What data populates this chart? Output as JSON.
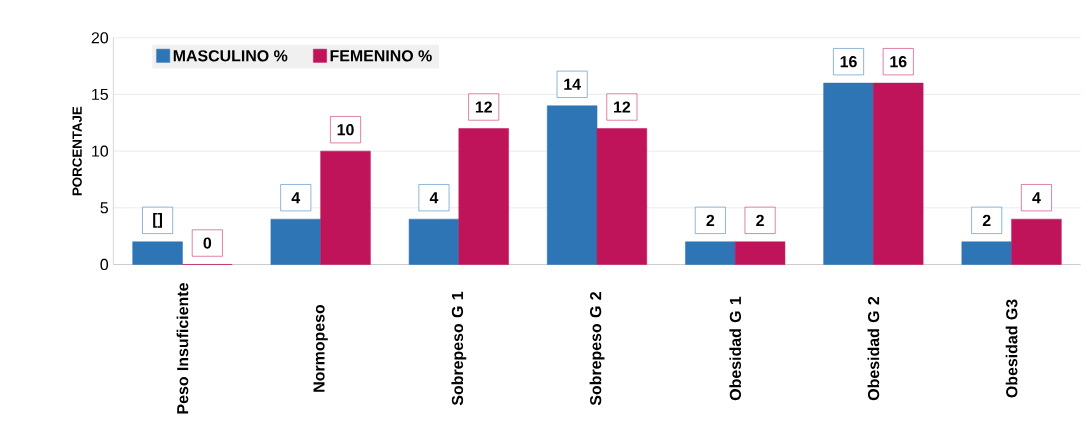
{
  "chart_data": {
    "type": "bar",
    "ylabel": "PORCENTAJE",
    "categories": [
      "Peso Insuficiente",
      "Normopeso",
      "Sobrepeso G 1",
      "Sobrepeso G 2",
      "Obesidad G 1",
      "Obesidad G 2",
      "Obesidad G3"
    ],
    "series": [
      {
        "name": "MASCULINO %",
        "color": "#2e75b6",
        "values": [
          2,
          4,
          4,
          14,
          2,
          16,
          2
        ],
        "value_labels": [
          "[]",
          "4",
          "4",
          "14",
          "2",
          "16",
          "2"
        ]
      },
      {
        "name": "FEMENINO %",
        "color": "#c0145a",
        "values": [
          0,
          10,
          12,
          12,
          2,
          16,
          4
        ],
        "value_labels": [
          "0",
          "10",
          "12",
          "12",
          "2",
          "16",
          "4"
        ]
      }
    ],
    "ylim": [
      0,
      20
    ],
    "yticks": [
      0,
      5,
      10,
      15,
      20
    ],
    "grid": "y",
    "legend": "top left"
  }
}
